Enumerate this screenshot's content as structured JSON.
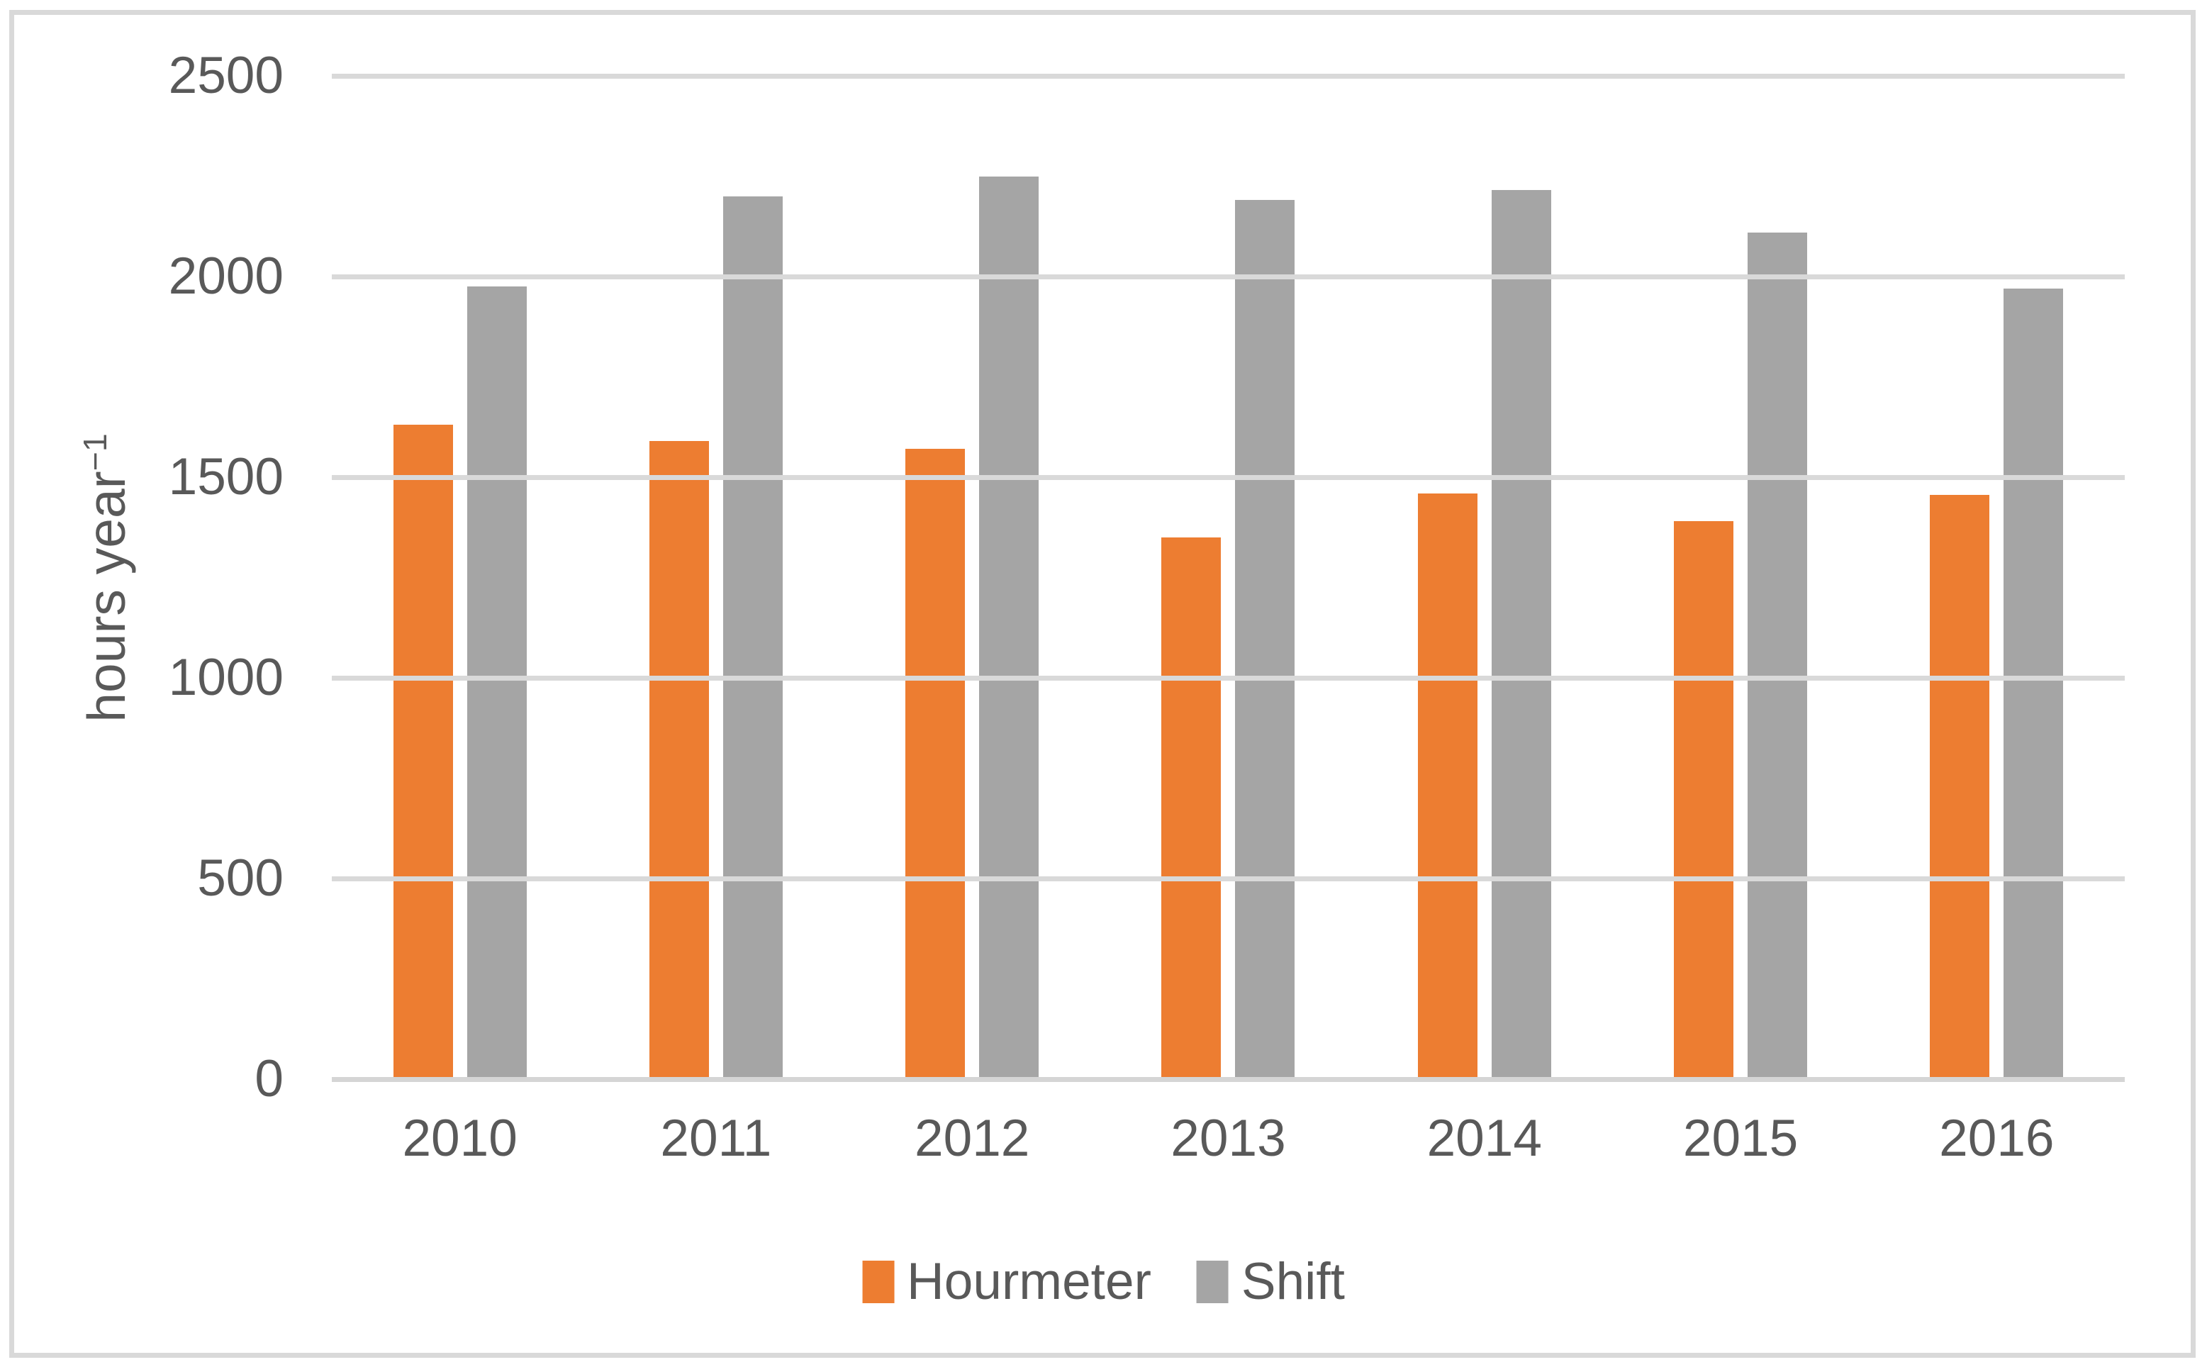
{
  "chart_data": {
    "type": "bar",
    "title": "",
    "categories": [
      "2010",
      "2011",
      "2012",
      "2013",
      "2014",
      "2015",
      "2016"
    ],
    "series": [
      {
        "name": "Hourmeter",
        "color": "#ED7D31",
        "values": [
          1630,
          1590,
          1570,
          1350,
          1460,
          1390,
          1455
        ]
      },
      {
        "name": "Shift",
        "color": "#A5A5A5",
        "values": [
          1975,
          2200,
          2250,
          2190,
          2215,
          2110,
          1970
        ]
      }
    ],
    "xlabel": "",
    "ylabel": "hours year⁻¹",
    "ylabel_base": "hours year",
    "ylabel_exponent": "−1",
    "ylim": [
      0,
      2500
    ],
    "ytick_step": 500,
    "yticks": [
      "0",
      "500",
      "1000",
      "1500",
      "2000",
      "2500"
    ],
    "grid": true,
    "legend_position": "bottom-center"
  },
  "colors": {
    "background": "#FFFFFF",
    "border": "#D9D9D9",
    "gridline": "#D9D9D9",
    "axis_line": "#D5D5D5",
    "text": "#595959",
    "hourmeter": "#ED7D31",
    "shift": "#A5A5A5"
  }
}
